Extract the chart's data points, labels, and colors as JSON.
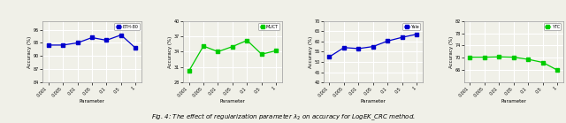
{
  "subplots": [
    {
      "label": "ETH-80",
      "label_color": "#0000cc",
      "x_ticks": [
        "0.001",
        "0.005",
        "0.01",
        "0.05",
        "0.1",
        "0.5",
        "1"
      ],
      "y_vals": [
        92.5,
        92.5,
        93.0,
        94.2,
        93.6,
        94.8,
        91.8
      ],
      "ylim": [
        84,
        98
      ],
      "yticks": [
        84,
        87,
        90,
        93,
        96
      ],
      "ylabel": "Accuracy (%)",
      "xlabel": "Parameter"
    },
    {
      "label": "MUCT",
      "label_color": "#00cc00",
      "x_ticks": [
        "0.001",
        "0.005",
        "0.01",
        "0.05",
        "0.1",
        "0.5",
        "1"
      ],
      "y_vals": [
        30.2,
        35.1,
        34.0,
        35.0,
        36.2,
        33.5,
        34.2
      ],
      "ylim": [
        28,
        40
      ],
      "yticks": [
        28,
        31,
        34,
        37,
        40
      ],
      "ylabel": "Accuracy (%)",
      "xlabel": "Parameter"
    },
    {
      "label": "Yale",
      "label_color": "#0000cc",
      "x_ticks": [
        "0.001",
        "0.005",
        "0.01",
        "0.05",
        "0.1",
        "0.5",
        "1"
      ],
      "y_vals": [
        52.5,
        57.0,
        56.5,
        57.5,
        60.2,
        62.0,
        63.5
      ],
      "ylim": [
        40,
        70
      ],
      "yticks": [
        40,
        45,
        50,
        55,
        60,
        65,
        70
      ],
      "ylabel": "Accuracy (%)",
      "xlabel": "Parameter"
    },
    {
      "label": "YTC",
      "label_color": "#00cc00",
      "x_ticks": [
        "0.001",
        "0.005",
        "0.01",
        "0.05",
        "0.1",
        "0.5",
        "1"
      ],
      "y_vals": [
        70.2,
        70.2,
        70.3,
        70.2,
        69.5,
        68.5,
        66.0
      ],
      "ylim": [
        62,
        82
      ],
      "yticks": [
        66,
        70,
        74,
        78,
        82
      ],
      "ylabel": "Accuracy (%)",
      "xlabel": "Parameter"
    }
  ],
  "caption": "Fig. 4: The effect of regularization parameter $\\lambda_2$ on accuracy for LogEK_CRC method.",
  "bg_color": "#f0f0e8",
  "plot_bg": "#f0f0e8",
  "grid_color": "white",
  "line_width": 0.9,
  "marker": "s",
  "marker_size": 2.5
}
